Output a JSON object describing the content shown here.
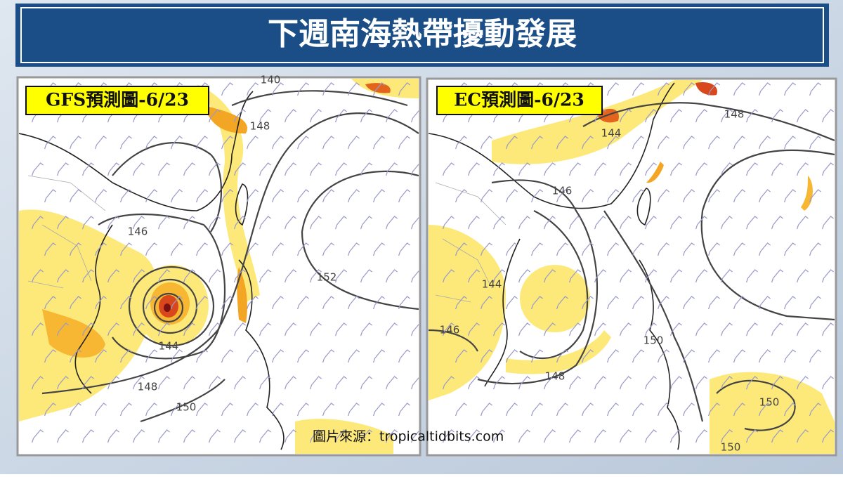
{
  "title": "下週南海熱帶擾動發展",
  "panels": [
    {
      "label": "GFS預測圖-6/23",
      "contour_labels": [
        "140",
        "148",
        "146",
        "152",
        "144",
        "148",
        "150"
      ]
    },
    {
      "label": "EC預測圖-6/23",
      "contour_labels": [
        "148",
        "144",
        "146",
        "144",
        "146",
        "148",
        "150",
        "150",
        "150"
      ]
    }
  ],
  "source": "圖片來源：tropicaltidbits.com"
}
